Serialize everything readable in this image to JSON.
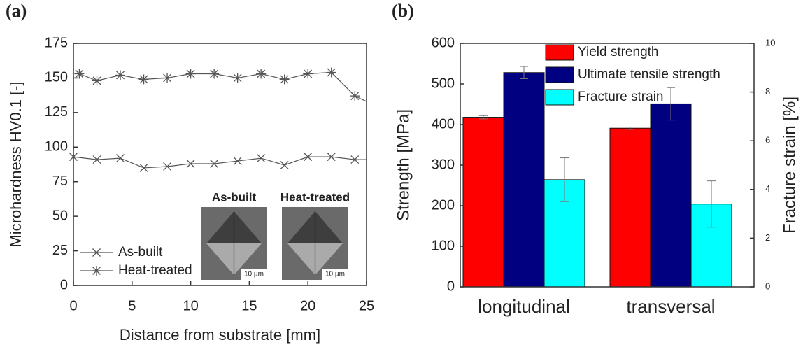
{
  "chart_data": [
    {
      "type": "line",
      "panel_label": "(a)",
      "x_label": "Distance from substrate [mm]",
      "y_label": "Microhardness HV0.1 [-]",
      "xlim": [
        0,
        25
      ],
      "xticks": [
        0,
        5,
        10,
        15,
        20,
        25
      ],
      "ylim": [
        0,
        175
      ],
      "yticks": [
        0,
        25,
        50,
        75,
        100,
        125,
        150,
        175
      ],
      "legend": "lower left",
      "series": [
        {
          "name": "As-built",
          "color": "#555555",
          "marker": "x",
          "x": [
            0,
            2,
            4,
            6,
            8,
            10,
            12,
            14,
            16,
            18,
            20,
            22,
            24,
            25
          ],
          "values": [
            93,
            91,
            92,
            85,
            86,
            88,
            88,
            90,
            92,
            87,
            93,
            93,
            91,
            91
          ]
        },
        {
          "name": "Heat-treated",
          "color": "#555555",
          "marker": "asterisk",
          "x": [
            0.5,
            2,
            4,
            6,
            8,
            10,
            12,
            14,
            16,
            18,
            20,
            22,
            24,
            25
          ],
          "values": [
            153,
            148,
            152,
            149,
            150,
            153,
            153,
            150,
            153,
            149,
            153,
            154,
            137,
            133
          ]
        }
      ],
      "insets": [
        {
          "label": "As-built",
          "scale": "10 µm"
        },
        {
          "label": "Heat-treated",
          "scale": "10 µm"
        }
      ]
    },
    {
      "type": "bar",
      "panel_label": "(b)",
      "y_label": "Strength [MPa]",
      "y2_label": "Fracture strain [%]",
      "categories": [
        "longitudinal",
        "transversal"
      ],
      "ylim": [
        0,
        600
      ],
      "yticks": [
        0,
        100,
        200,
        300,
        400,
        500,
        600
      ],
      "y2lim": [
        0,
        10
      ],
      "y2ticks": [
        0,
        2,
        4,
        6,
        8,
        10
      ],
      "legend": "upper right",
      "series": [
        {
          "name": "Yield strength",
          "color": "#ff0000",
          "values": [
            418,
            391
          ],
          "errors": [
            4,
            3
          ]
        },
        {
          "name": "Ultimate tensile strength",
          "color": "#000080",
          "values": [
            528,
            451
          ],
          "errors": [
            15,
            40
          ]
        },
        {
          "name": "Fracture strain",
          "color": "#00ffff",
          "axis": "y2",
          "values": [
            4.4,
            3.4
          ],
          "errors": [
            0.9,
            0.95
          ]
        }
      ]
    }
  ]
}
